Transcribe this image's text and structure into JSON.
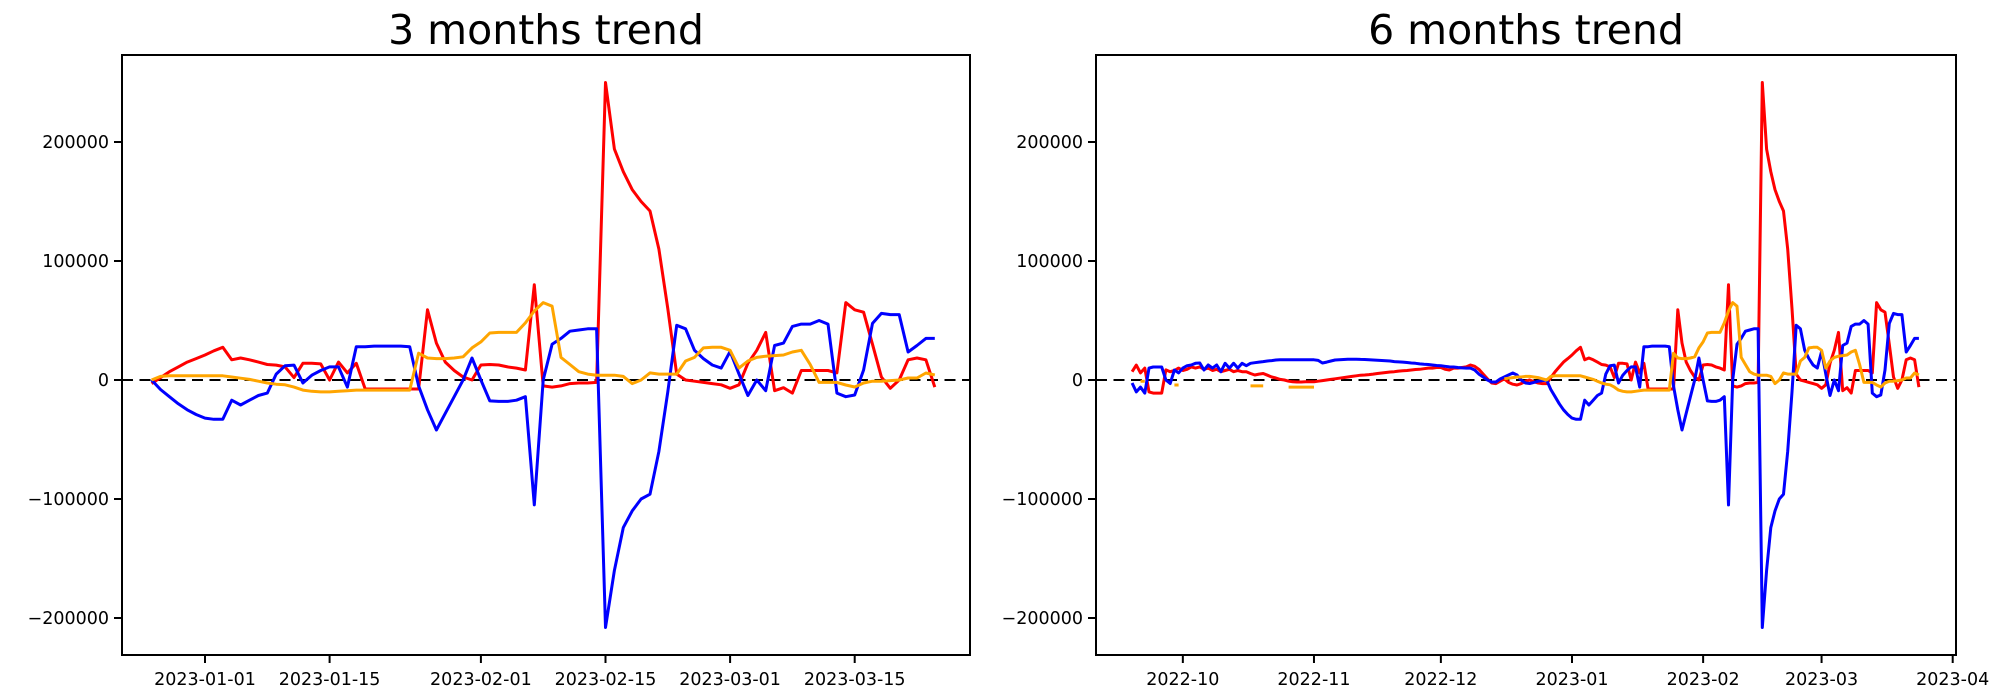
{
  "page": {
    "background": "#ffffff",
    "kind": "matplotlib-style figure with two line subplots"
  },
  "colors": {
    "red": "#ff0000",
    "blue": "#0000ff",
    "orange": "#ffa500",
    "axis": "#000000",
    "zero_line": "#000000"
  },
  "chart_data": [
    {
      "type": "line",
      "title": "3 months trend",
      "xlabel": "",
      "ylabel": "",
      "grid": false,
      "legend": null,
      "zero_line": {
        "style": "dashed",
        "color": "#000000",
        "y": 0
      },
      "ylim": [
        -231000,
        273000
      ],
      "x_range": [
        "2022-12-26",
        "2023-03-24"
      ],
      "x_ticks": [
        {
          "date": "2023-01-01",
          "label": "2023-01-01"
        },
        {
          "date": "2023-01-15",
          "label": "2023-01-15"
        },
        {
          "date": "2023-02-01",
          "label": "2023-02-01"
        },
        {
          "date": "2023-02-15",
          "label": "2023-02-15"
        },
        {
          "date": "2023-03-01",
          "label": "2023-03-01"
        },
        {
          "date": "2023-03-15",
          "label": "2023-03-15"
        }
      ],
      "y_ticks": [
        {
          "value": 200000,
          "label": "200000"
        },
        {
          "value": 100000,
          "label": "100000"
        },
        {
          "value": 0,
          "label": "0"
        },
        {
          "value": -100000,
          "label": "−100000"
        },
        {
          "value": -200000,
          "label": "−200000"
        }
      ],
      "series": [
        {
          "name": "red",
          "color": "#ff0000",
          "start": "2022-12-26",
          "values": [
            -3000,
            2000,
            7000,
            11000,
            15000,
            18000,
            21000,
            24500,
            27500,
            17000,
            18500,
            17000,
            15000,
            13000,
            12500,
            11000,
            2000,
            14000,
            14000,
            13500,
            0,
            15000,
            6000,
            14000,
            -7600,
            -7600,
            -7600,
            -7600,
            -7600,
            -7600,
            -7600,
            59000,
            31000,
            15000,
            8000,
            2500,
            0,
            12600,
            13000,
            12600,
            11000,
            10000,
            8400,
            80000,
            -5000,
            -6000,
            -5000,
            -3000,
            -2500,
            -2500,
            -2000,
            250000,
            194000,
            175000,
            160000,
            150000,
            142000,
            110000,
            60000,
            5000,
            0,
            -1000,
            -2000,
            -3000,
            -4000,
            -7000,
            -4000,
            14000,
            25000,
            40000,
            -9000,
            -6500,
            -11000,
            8000,
            8000,
            8000,
            8000,
            6000,
            65000,
            59000,
            57000,
            30000,
            2500,
            -7000,
            0,
            17000,
            18500,
            17000,
            -6000
          ]
        },
        {
          "name": "blue",
          "color": "#0000ff",
          "start": "2022-12-26",
          "values": [
            0,
            -8000,
            -14000,
            -20000,
            -25000,
            -29000,
            -32000,
            -33000,
            -33000,
            -17000,
            -21000,
            -17000,
            -13000,
            -11000,
            5000,
            12000,
            12500,
            -2500,
            4000,
            8000,
            11000,
            11000,
            -6000,
            28000,
            28000,
            28500,
            28500,
            28500,
            28500,
            28000,
            -5000,
            -25000,
            -42000,
            -28000,
            -14000,
            0,
            18500,
            0,
            -17600,
            -18000,
            -18000,
            -17000,
            -14000,
            -105000,
            0,
            30000,
            35000,
            41000,
            42000,
            43000,
            43000,
            -208000,
            -160000,
            -124000,
            -110000,
            -100000,
            -96000,
            -60000,
            -10000,
            46000,
            43000,
            25000,
            18000,
            12600,
            10000,
            24000,
            5000,
            -13000,
            0,
            -9000,
            29000,
            31000,
            45000,
            47000,
            47000,
            50000,
            47000,
            -11000,
            -14000,
            -12600,
            8400,
            47600,
            56000,
            55000,
            55000,
            23500,
            29000,
            35000,
            35000
          ]
        },
        {
          "name": "orange",
          "color": "#ffa500",
          "start": "2022-12-26",
          "values": [
            0,
            3000,
            3500,
            3500,
            3500,
            3500,
            3500,
            3500,
            3500,
            2500,
            1500,
            500,
            -1000,
            -2500,
            -3500,
            -4000,
            -6000,
            -8500,
            -9500,
            -10000,
            -10000,
            -9500,
            -9000,
            -8500,
            -8500,
            -8500,
            -8500,
            -8500,
            -8500,
            -8500,
            22500,
            18500,
            18000,
            18000,
            18500,
            19500,
            27000,
            32000,
            39500,
            40000,
            40000,
            40000,
            48000,
            58000,
            65000,
            62000,
            19000,
            13000,
            7000,
            5000,
            4000,
            4000,
            4000,
            3000,
            -3000,
            0,
            6000,
            5000,
            5000,
            5000,
            16000,
            19000,
            27000,
            27500,
            27500,
            25000,
            10000,
            16000,
            19000,
            20000,
            20500,
            21000,
            23500,
            25000,
            13000,
            -2000,
            -2000,
            -2000,
            -4200,
            -5900,
            -2500,
            -1000,
            -1000,
            -500,
            0,
            1700,
            1700,
            5900,
            4200
          ]
        }
      ]
    },
    {
      "type": "line",
      "title": "6 months trend",
      "xlabel": "",
      "ylabel": "",
      "grid": false,
      "legend": null,
      "zero_line": {
        "style": "dashed",
        "color": "#000000",
        "y": 0
      },
      "ylim": [
        -231000,
        273000
      ],
      "x_range": [
        "2022-09-19",
        "2023-03-24"
      ],
      "x_ticks": [
        {
          "date": "2022-10-01",
          "label": "2022-10"
        },
        {
          "date": "2022-11-01",
          "label": "2022-11"
        },
        {
          "date": "2022-12-01",
          "label": "2022-12"
        },
        {
          "date": "2023-01-01",
          "label": "2023-01"
        },
        {
          "date": "2023-02-01",
          "label": "2023-02"
        },
        {
          "date": "2023-03-01",
          "label": "2023-03"
        },
        {
          "date": "2023-04-01",
          "label": "2023-04"
        }
      ],
      "y_ticks": [
        {
          "value": 200000,
          "label": "200000"
        },
        {
          "value": 100000,
          "label": "100000"
        },
        {
          "value": 0,
          "label": "0"
        },
        {
          "value": -100000,
          "label": "−100000"
        },
        {
          "value": -200000,
          "label": "−200000"
        }
      ],
      "series": [
        {
          "name": "red",
          "color": "#ff0000",
          "start": "2022-09-19",
          "values": [
            7000,
            12500,
            6000,
            10000,
            -10000,
            -11000,
            -11000,
            -11000,
            8500,
            7000,
            8000,
            10000,
            8000,
            9000,
            11000,
            10000,
            11000,
            9000,
            10000,
            8000,
            9000,
            7000,
            8000,
            9000,
            7000,
            8000,
            7000,
            7000,
            5500,
            4200,
            5000,
            5500,
            4000,
            2500,
            1700,
            500,
            0,
            -1000,
            -1500,
            -1700,
            -1700,
            -1500,
            -1500,
            -1500,
            -1000,
            -500,
            0,
            500,
            1000,
            1500,
            2000,
            2500,
            3000,
            3500,
            4000,
            4200,
            4500,
            5000,
            5500,
            5900,
            6300,
            6700,
            7000,
            7500,
            7700,
            8000,
            8400,
            8800,
            9000,
            9500,
            10000,
            10000,
            10500,
            10500,
            9000,
            8400,
            10000,
            10000,
            10500,
            11000,
            12600,
            11500,
            9000,
            5000,
            1000,
            -2500,
            -3000,
            -1000,
            1000,
            -2000,
            -3500,
            -4200,
            -3000,
            -1000,
            0,
            -1500,
            -2500,
            -3000,
            -3000,
            2000,
            7000,
            11000,
            15000,
            18000,
            21000,
            24500,
            27500,
            17000,
            18500,
            17000,
            15000,
            13000,
            12500,
            11000,
            2000,
            14000,
            14000,
            13500,
            0,
            15000,
            6000,
            14000,
            -7600,
            -7600,
            -7600,
            -7600,
            -7600,
            -7600,
            -7600,
            59000,
            31000,
            15000,
            8000,
            2500,
            0,
            12600,
            13000,
            12600,
            11000,
            10000,
            8400,
            80000,
            -5000,
            -6000,
            -5000,
            -3000,
            -2500,
            -2500,
            -2000,
            250000,
            194000,
            175000,
            160000,
            150000,
            142000,
            110000,
            60000,
            5000,
            0,
            -1000,
            -2000,
            -3000,
            -4000,
            -7000,
            -4000,
            14000,
            25000,
            40000,
            -9000,
            -6500,
            -11000,
            8000,
            8000,
            8000,
            8000,
            6000,
            65000,
            59000,
            57000,
            30000,
            2500,
            -7000,
            0,
            17000,
            18500,
            17000,
            -6000
          ]
        },
        {
          "name": "blue",
          "color": "#0000ff",
          "start": "2022-09-19",
          "values": [
            -2500,
            -10000,
            -6000,
            -11000,
            10000,
            10900,
            10900,
            10900,
            0,
            -2900,
            8400,
            6000,
            10000,
            12000,
            12600,
            14000,
            14300,
            8400,
            12600,
            10000,
            12600,
            7000,
            14000,
            10000,
            14000,
            10000,
            14000,
            12000,
            14000,
            14500,
            15000,
            15500,
            16000,
            16300,
            16800,
            17000,
            17000,
            17000,
            17000,
            17000,
            17000,
            17000,
            17000,
            17000,
            16500,
            14300,
            15000,
            16000,
            16800,
            17000,
            17200,
            17500,
            17500,
            17500,
            17300,
            17200,
            17000,
            16800,
            16600,
            16400,
            16200,
            16000,
            15500,
            15200,
            15000,
            14700,
            14300,
            14000,
            13500,
            13200,
            13000,
            12600,
            12200,
            12000,
            11500,
            11000,
            10900,
            10500,
            10200,
            10000,
            10000,
            8400,
            5000,
            2500,
            0,
            -1700,
            -1700,
            800,
            2500,
            4200,
            5900,
            4200,
            0,
            -2500,
            -2900,
            -2000,
            -1000,
            -500,
            0,
            -8000,
            -14000,
            -20000,
            -25000,
            -29000,
            -32000,
            -33000,
            -33000,
            -17000,
            -21000,
            -17000,
            -13000,
            -11000,
            5000,
            12000,
            12500,
            -2500,
            4000,
            8000,
            11000,
            11000,
            -6000,
            28000,
            28000,
            28500,
            28500,
            28500,
            28500,
            28000,
            -5000,
            -25000,
            -42000,
            -28000,
            -14000,
            0,
            18500,
            0,
            -17600,
            -18000,
            -18000,
            -17000,
            -14000,
            -105000,
            0,
            30000,
            35000,
            41000,
            42000,
            43000,
            43000,
            -208000,
            -160000,
            -124000,
            -110000,
            -100000,
            -96000,
            -60000,
            -10000,
            46000,
            43000,
            25000,
            18000,
            12600,
            10000,
            24000,
            5000,
            -13000,
            0,
            -9000,
            29000,
            31000,
            45000,
            47000,
            47000,
            50000,
            47000,
            -11000,
            -14000,
            -12600,
            8400,
            47600,
            56000,
            55000,
            55000,
            23500,
            29000,
            35000,
            35000
          ]
        },
        {
          "name": "orange",
          "color": "#ffa500",
          "start": "2022-09-19",
          "values": [
            null,
            null,
            -1000,
            -1000,
            null,
            null,
            null,
            null,
            null,
            null,
            -4200,
            -4200,
            null,
            null,
            null,
            null,
            null,
            null,
            null,
            null,
            null,
            null,
            null,
            null,
            null,
            null,
            null,
            null,
            -5000,
            -5000,
            -5000,
            -5000,
            null,
            null,
            null,
            null,
            null,
            -6000,
            -6000,
            -6000,
            -6000,
            -6000,
            -6000,
            -6000,
            null,
            null,
            null,
            null,
            null,
            null,
            null,
            null,
            null,
            null,
            null,
            null,
            null,
            null,
            null,
            null,
            null,
            null,
            null,
            null,
            null,
            null,
            null,
            null,
            null,
            null,
            null,
            null,
            null,
            null,
            null,
            null,
            null,
            null,
            null,
            null,
            null,
            null,
            null,
            null,
            null,
            null,
            null,
            null,
            1000,
            1500,
            2000,
            2500,
            2500,
            3000,
            3000,
            2500,
            2000,
            1000,
            0,
            3000,
            3500,
            3500,
            3500,
            3500,
            3500,
            3500,
            3500,
            2500,
            1500,
            500,
            -1000,
            -2500,
            -3500,
            -4000,
            -6000,
            -8500,
            -9500,
            -10000,
            -10000,
            -9500,
            -9000,
            -8500,
            -8500,
            -8500,
            -8500,
            -8500,
            -8500,
            -8500,
            22500,
            18500,
            18000,
            18000,
            18500,
            19500,
            27000,
            32000,
            39500,
            40000,
            40000,
            40000,
            48000,
            58000,
            65000,
            62000,
            19000,
            13000,
            7000,
            5000,
            4000,
            4000,
            4000,
            3000,
            -3000,
            0,
            6000,
            5000,
            5000,
            5000,
            16000,
            19000,
            27000,
            27500,
            27500,
            25000,
            10000,
            16000,
            19000,
            20000,
            20500,
            21000,
            23500,
            25000,
            13000,
            -2000,
            -2000,
            -2000,
            -4200,
            -5900,
            -2500,
            -1000,
            -1000,
            -500,
            0,
            1700,
            1700,
            5900,
            4200
          ]
        }
      ]
    }
  ]
}
